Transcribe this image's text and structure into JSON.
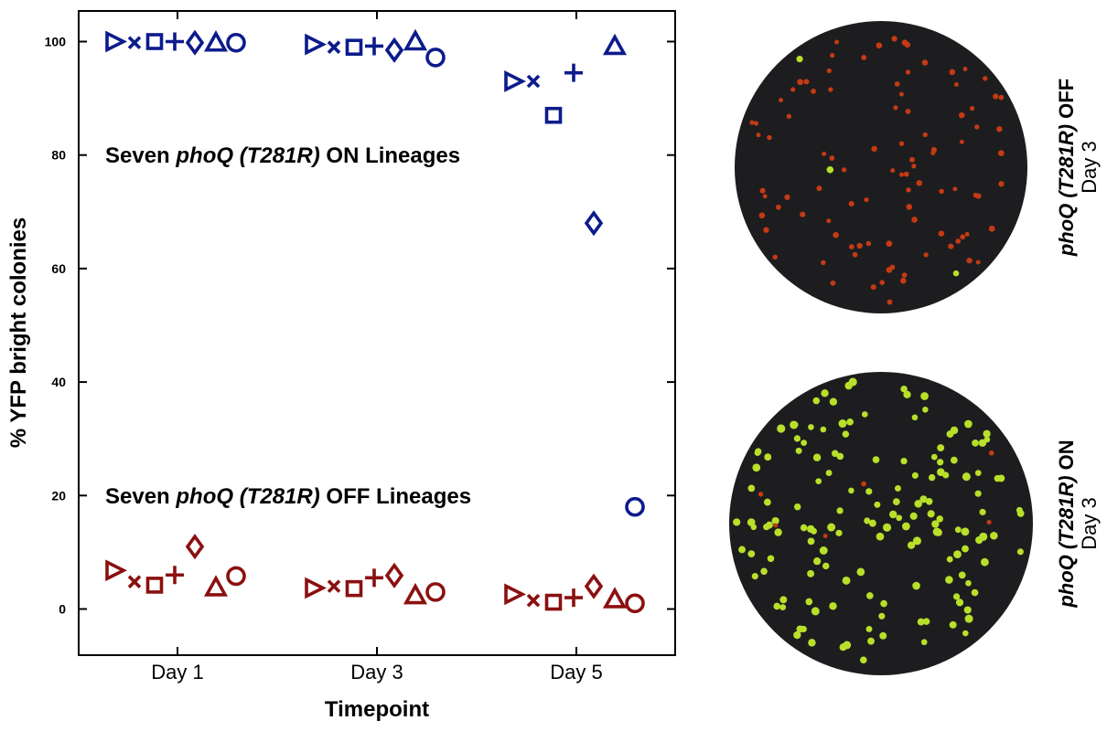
{
  "chart_data": {
    "type": "scatter",
    "xlabel": "Timepoint",
    "ylabel": "% YFP bright colonies",
    "ylim": [
      -5,
      105
    ],
    "yticks": [
      0,
      20,
      40,
      60,
      80,
      100
    ],
    "ytick_labels": [
      "0",
      "20",
      "40",
      "60",
      "80",
      "100"
    ],
    "categories": [
      "Day 1",
      "Day 3",
      "Day 5"
    ],
    "markers": [
      "triangle-right",
      "x",
      "square",
      "plus",
      "diamond",
      "triangle-up",
      "circle"
    ],
    "series": [
      {
        "name_parts": [
          "Seven ",
          "phoQ (T281R)",
          " ON Lineages"
        ],
        "color": "#0c1b8c",
        "values": [
          [
            100,
            99.8,
            100,
            100,
            99.8,
            99.8,
            99.8
          ],
          [
            99.5,
            99,
            99,
            99.2,
            98.5,
            100,
            97.2
          ],
          [
            93,
            93,
            87,
            94.5,
            68,
            99.2,
            18
          ]
        ]
      },
      {
        "name_parts": [
          "Seven ",
          "phoQ (T281R)",
          " OFF Lineages"
        ],
        "color": "#8b1010",
        "values": [
          [
            6.8,
            4.8,
            4.2,
            6,
            11,
            3.8,
            5.8
          ],
          [
            3.7,
            4,
            3.6,
            5.5,
            5.9,
            2.4,
            3
          ],
          [
            2.6,
            1.5,
            1.2,
            2,
            4,
            1.7,
            1
          ]
        ]
      }
    ]
  },
  "plates": [
    {
      "title_parts": [
        "phoQ (T281R)",
        " OFF"
      ],
      "subtitle": "Day 3"
    },
    {
      "title_parts": [
        "phoQ (T281R)",
        " ON"
      ],
      "subtitle": "Day 3"
    }
  ],
  "colors": {
    "plate_background": "#1d1d1f",
    "colony_red": "#c43a14",
    "colony_yellow": "#b8e02a"
  }
}
